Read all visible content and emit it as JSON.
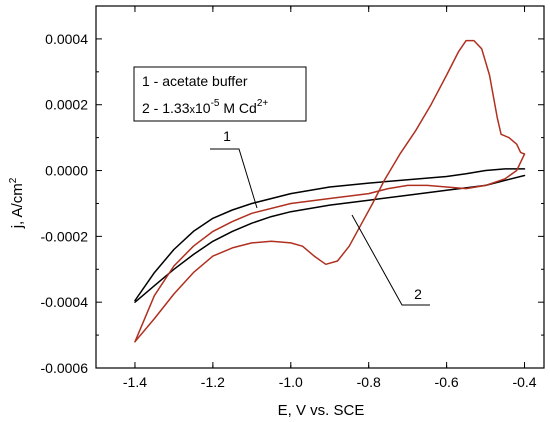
{
  "chart_data": {
    "type": "line",
    "xlabel": "E, V vs. SCE",
    "ylabel": "j, A/cm",
    "ylabel_sup": "2",
    "xlim": [
      -1.5,
      -0.35
    ],
    "ylim": [
      -0.0006,
      0.0005
    ],
    "x_ticks": [
      -1.4,
      -1.2,
      -1.0,
      -0.8,
      -0.6,
      -0.4
    ],
    "x_tick_labels": [
      "-1.4",
      "-1.2",
      "-1.0",
      "-0.8",
      "-0.6",
      "-0.4"
    ],
    "y_ticks": [
      -0.0006,
      -0.0004,
      -0.0002,
      0.0,
      0.0002,
      0.0004
    ],
    "y_tick_labels": [
      "-0.0006",
      "-0.0004",
      "-0.0002",
      "0.0000",
      "0.0002",
      "0.0004"
    ],
    "legend": {
      "position": "top-left",
      "entries": [
        {
          "text": "1 - acetate buffer"
        },
        {
          "text": "2 - 1.33",
          "mult": "x",
          "base": "10",
          "exp": "-5",
          "tail": " M Cd",
          "charge": "2+"
        }
      ]
    },
    "annotations": [
      "1",
      "2"
    ],
    "series": [
      {
        "color": "#000000",
        "forward": [
          [
            -1.4,
            -0.0004
          ],
          [
            -1.35,
            -0.00035
          ],
          [
            -1.3,
            -0.0003
          ],
          [
            -1.25,
            -0.000255
          ],
          [
            -1.2,
            -0.000215
          ],
          [
            -1.15,
            -0.000185
          ],
          [
            -1.1,
            -0.00016
          ],
          [
            -1.05,
            -0.00014
          ],
          [
            -1.0,
            -0.000125
          ],
          [
            -0.9,
            -0.000105
          ],
          [
            -0.8,
            -9e-05
          ],
          [
            -0.7,
            -7.5e-05
          ],
          [
            -0.6,
            -6e-05
          ],
          [
            -0.5,
            -4.5e-05
          ],
          [
            -0.45,
            -3e-05
          ],
          [
            -0.4,
            -1.5e-05
          ]
        ],
        "reverse": [
          [
            -0.4,
            5e-06
          ],
          [
            -0.45,
            5e-06
          ],
          [
            -0.5,
            0.0
          ],
          [
            -0.55,
            -1e-05
          ],
          [
            -0.6,
            -1.8e-05
          ],
          [
            -0.7,
            -2.8e-05
          ],
          [
            -0.8,
            -3.8e-05
          ],
          [
            -0.9,
            -5e-05
          ],
          [
            -1.0,
            -7e-05
          ],
          [
            -1.1,
            -0.0001
          ],
          [
            -1.15,
            -0.00012
          ],
          [
            -1.2,
            -0.000145
          ],
          [
            -1.25,
            -0.000185
          ],
          [
            -1.3,
            -0.00024
          ],
          [
            -1.35,
            -0.00031
          ],
          [
            -1.4,
            -0.000395
          ]
        ]
      },
      {
        "color": "#b03020",
        "forward": [
          [
            -1.4,
            -0.00052
          ],
          [
            -1.35,
            -0.00045
          ],
          [
            -1.3,
            -0.000375
          ],
          [
            -1.25,
            -0.00031
          ],
          [
            -1.2,
            -0.00026
          ],
          [
            -1.15,
            -0.000235
          ],
          [
            -1.1,
            -0.00022
          ],
          [
            -1.05,
            -0.000215
          ],
          [
            -1.0,
            -0.00022
          ],
          [
            -0.97,
            -0.00023
          ],
          [
            -0.94,
            -0.00026
          ],
          [
            -0.91,
            -0.000285
          ],
          [
            -0.88,
            -0.000275
          ],
          [
            -0.85,
            -0.00023
          ],
          [
            -0.82,
            -0.000165
          ],
          [
            -0.79,
            -0.0001
          ],
          [
            -0.76,
            -3e-05
          ],
          [
            -0.72,
            5e-05
          ],
          [
            -0.68,
            0.00012
          ],
          [
            -0.64,
            0.0002
          ],
          [
            -0.6,
            0.00029
          ],
          [
            -0.57,
            0.00036
          ],
          [
            -0.55,
            0.000395
          ],
          [
            -0.53,
            0.000395
          ],
          [
            -0.51,
            0.00037
          ],
          [
            -0.49,
            0.00029
          ],
          [
            -0.47,
            0.00016
          ],
          [
            -0.46,
            0.00011
          ],
          [
            -0.44,
            0.0001
          ],
          [
            -0.42,
            8e-05
          ],
          [
            -0.41,
            5.5e-05
          ],
          [
            -0.4,
            5e-05
          ]
        ],
        "reverse": [
          [
            -0.4,
            5e-05
          ],
          [
            -0.42,
            0.0
          ],
          [
            -0.45,
            -2.5e-05
          ],
          [
            -0.5,
            -4.5e-05
          ],
          [
            -0.55,
            -5.5e-05
          ],
          [
            -0.6,
            -5e-05
          ],
          [
            -0.65,
            -4.5e-05
          ],
          [
            -0.7,
            -4.5e-05
          ],
          [
            -0.75,
            -5.5e-05
          ],
          [
            -0.8,
            -7e-05
          ],
          [
            -0.9,
            -8.5e-05
          ],
          [
            -1.0,
            -0.0001
          ],
          [
            -1.1,
            -0.00013
          ],
          [
            -1.15,
            -0.000155
          ],
          [
            -1.2,
            -0.000185
          ],
          [
            -1.25,
            -0.00023
          ],
          [
            -1.3,
            -0.00029
          ],
          [
            -1.35,
            -0.00038
          ],
          [
            -1.4,
            -0.00052
          ]
        ]
      }
    ]
  }
}
